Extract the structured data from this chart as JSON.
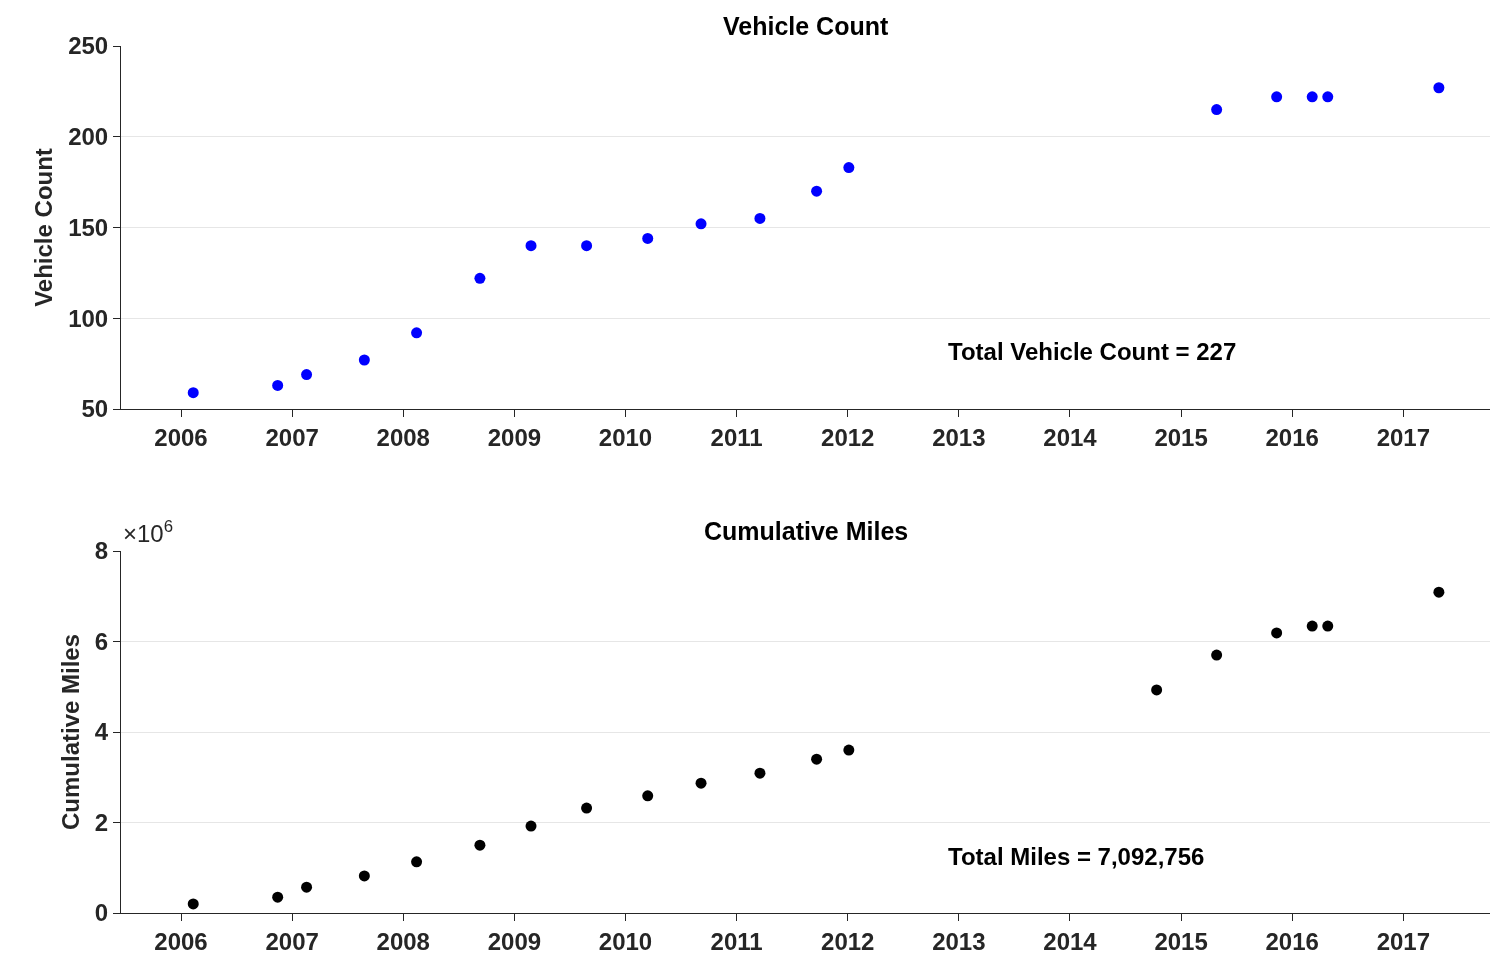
{
  "chart_data": [
    {
      "type": "scatter",
      "title": "Vehicle Count",
      "ylabel": "Vehicle Count",
      "marker": "circle",
      "grid": "y",
      "xlim": [
        2005.46,
        2017.78
      ],
      "xticks": [
        2006,
        2007,
        2008,
        2009,
        2010,
        2011,
        2012,
        2013,
        2014,
        2015,
        2016,
        2017
      ],
      "ylim": [
        50,
        250
      ],
      "yticks": [
        50,
        100,
        150,
        200,
        250
      ],
      "series": [
        {
          "color": "#0000ff",
          "x": [
            2006.11,
            2006.87,
            2007.13,
            2007.65,
            2008.12,
            2008.69,
            2009.15,
            2009.65,
            2010.2,
            2010.68,
            2011.21,
            2011.72,
            2012.01,
            2015.32,
            2015.86,
            2016.18,
            2016.32,
            2017.32
          ],
          "values": [
            59,
            63,
            69,
            77,
            92,
            122,
            140,
            140,
            144,
            152,
            155,
            170,
            183,
            215,
            222,
            222,
            222,
            227
          ]
        }
      ],
      "annotations": [
        "Total Vehicle Count = 227"
      ]
    },
    {
      "type": "scatter",
      "title": "Cumulative Miles",
      "ylabel": "Cumulative Miles",
      "marker": "circle",
      "grid": "y",
      "xlim": [
        2005.46,
        2017.78
      ],
      "xticks": [
        2006,
        2007,
        2008,
        2009,
        2010,
        2011,
        2012,
        2013,
        2014,
        2015,
        2016,
        2017
      ],
      "ylim": [
        0,
        8
      ],
      "yticks": [
        0,
        2,
        4,
        6,
        8
      ],
      "series": [
        {
          "color": "#000000",
          "x": [
            2006.11,
            2006.87,
            2007.13,
            2007.65,
            2008.12,
            2008.69,
            2009.15,
            2009.65,
            2010.2,
            2010.68,
            2011.21,
            2011.72,
            2012.01,
            2014.78,
            2015.32,
            2015.86,
            2016.18,
            2016.32,
            2017.32
          ],
          "values": [
            0.2,
            0.35,
            0.57,
            0.82,
            1.13,
            1.5,
            1.92,
            2.32,
            2.59,
            2.87,
            3.09,
            3.4,
            3.6,
            4.93,
            5.7,
            6.19,
            6.34,
            6.34,
            7.09
          ]
        }
      ],
      "annotations": [
        "×10$^{6}$",
        "Total Miles = 7,092,756"
      ]
    }
  ]
}
